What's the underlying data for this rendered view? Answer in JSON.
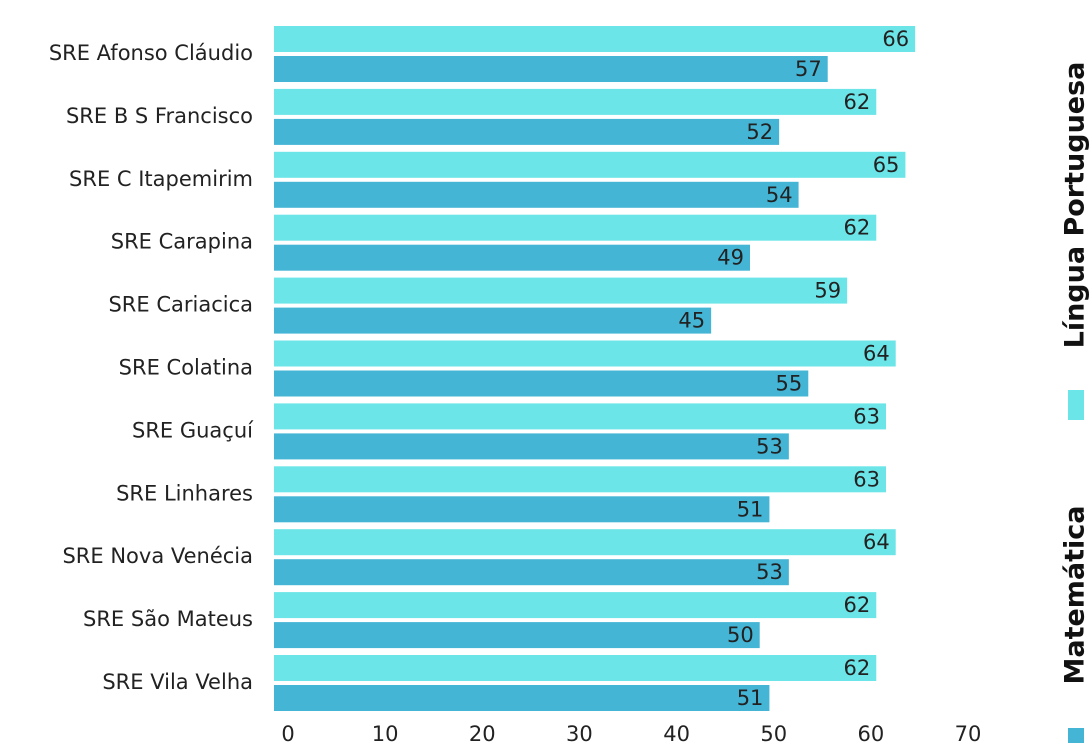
{
  "chart_data": {
    "type": "bar",
    "orientation": "horizontal",
    "categories": [
      "SRE Afonso Cláudio",
      "SRE B S Francisco",
      "SRE C Itapemirim",
      "SRE Carapina",
      "SRE Cariacica",
      "SRE Colatina",
      "SRE Guaçuí",
      "SRE Linhares",
      "SRE Nova Venécia",
      "SRE São Mateus",
      "SRE Vila Velha"
    ],
    "series": [
      {
        "name": "Língua Portuguesa",
        "color": "#6ce5e8",
        "values": [
          66,
          62,
          65,
          62,
          59,
          64,
          63,
          63,
          64,
          62,
          62
        ]
      },
      {
        "name": "Matemática",
        "color": "#45b5d6",
        "values": [
          57,
          52,
          54,
          49,
          45,
          55,
          53,
          51,
          53,
          50,
          51
        ]
      }
    ],
    "xlim": [
      0,
      70
    ],
    "xticks": [
      0,
      10,
      20,
      30,
      40,
      50,
      60,
      70
    ],
    "legend": "right"
  }
}
